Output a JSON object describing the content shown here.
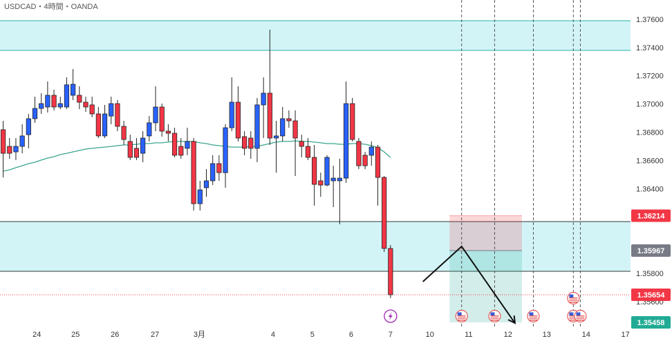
{
  "chart_data": {
    "type": "candlestick",
    "title": "USDCAD・4時間・OANDA",
    "candles": {
      "up_color": "#2962ff",
      "down_color": "#f23645",
      "open": [
        1.36823,
        1.36705,
        1.36666,
        1.36705,
        1.36788,
        1.36901,
        1.36974,
        1.36984,
        1.37067,
        1.36984,
        1.36984,
        1.37067,
        1.37067,
        1.37018,
        1.36999,
        1.36935,
        1.36779,
        1.3692,
        1.37008,
        1.36847,
        1.3674,
        1.36691,
        1.36656,
        1.36779,
        1.36872,
        1.36984,
        1.36813,
        1.36798,
        1.36705,
        1.36691,
        1.3674,
        1.36299,
        1.36412,
        1.36461,
        1.36583,
        1.36519,
        1.36837,
        1.37018,
        1.36774,
        1.36764,
        1.36691,
        1.36999,
        1.37082,
        1.36764,
        1.36779,
        1.36901,
        1.36886,
        1.3674,
        1.36705,
        1.36627,
        1.36461,
        1.36431,
        1.36461,
        1.36461,
        1.3648,
        1.37008,
        1.3674,
        1.36642,
        1.36642,
        1.367,
        1.36485,
        1.35982
      ],
      "high": [
        1.36886,
        1.36764,
        1.36764,
        1.36862,
        1.36935,
        1.37057,
        1.37082,
        1.37165,
        1.37106,
        1.37057,
        1.37194,
        1.37253,
        1.37131,
        1.37057,
        1.37057,
        1.36984,
        1.36999,
        1.37057,
        1.37033,
        1.36886,
        1.36788,
        1.36764,
        1.36813,
        1.3692,
        1.37131,
        1.37008,
        1.36862,
        1.36837,
        1.36764,
        1.36837,
        1.36764,
        1.36461,
        1.36544,
        1.36642,
        1.36642,
        1.36862,
        1.37194,
        1.37131,
        1.36813,
        1.36813,
        1.37048,
        1.37194,
        1.37532,
        1.36886,
        1.36984,
        1.3696,
        1.3696,
        1.36788,
        1.36764,
        1.36715,
        1.36519,
        1.36642,
        1.36568,
        1.36617,
        1.37165,
        1.37048,
        1.36764,
        1.36666,
        1.3674,
        1.36715,
        1.36495,
        1.36006
      ],
      "low": [
        1.36485,
        1.36617,
        1.36608,
        1.36656,
        1.36691,
        1.36872,
        1.36935,
        1.36945,
        1.3696,
        1.36969,
        1.36969,
        1.37033,
        1.36969,
        1.3695,
        1.36911,
        1.36764,
        1.36764,
        1.36862,
        1.36813,
        1.36715,
        1.36608,
        1.36608,
        1.36593,
        1.3674,
        1.36813,
        1.36774,
        1.3674,
        1.36627,
        1.36617,
        1.36642,
        1.36251,
        1.36251,
        1.36348,
        1.36431,
        1.36461,
        1.36412,
        1.36813,
        1.3674,
        1.36642,
        1.36617,
        1.36593,
        1.36764,
        1.36715,
        1.36519,
        1.3674,
        1.36837,
        1.36495,
        1.36627,
        1.36608,
        1.36285,
        1.36348,
        1.36422,
        1.36275,
        1.36153,
        1.36446,
        1.3674,
        1.36544,
        1.36544,
        1.36568,
        1.36285,
        1.35957,
        1.3563
      ],
      "close": [
        1.36656,
        1.36656,
        1.36705,
        1.36779,
        1.36901,
        1.36974,
        1.37008,
        1.37067,
        1.36984,
        1.37008,
        1.37141,
        1.37145,
        1.37018,
        1.36984,
        1.36935,
        1.36779,
        1.36935,
        1.37008,
        1.36847,
        1.36754,
        1.36627,
        1.36627,
        1.36764,
        1.36872,
        1.36984,
        1.36813,
        1.36798,
        1.36642,
        1.36642,
        1.3674,
        1.36299,
        1.36397,
        1.36461,
        1.36583,
        1.36519,
        1.36837,
        1.37018,
        1.36764,
        1.36691,
        1.36691,
        1.36999,
        1.37082,
        1.36764,
        1.36779,
        1.36901,
        1.36886,
        1.36764,
        1.36705,
        1.36627,
        1.36436,
        1.36431,
        1.36627,
        1.3648,
        1.3648,
        1.37008,
        1.36754,
        1.36568,
        1.36568,
        1.367,
        1.36485,
        1.35982,
        1.35654
      ]
    },
    "ma": {
      "color": "#3aa68e",
      "values": [
        1.36529,
        1.36539,
        1.36554,
        1.36568,
        1.36583,
        1.36593,
        1.36608,
        1.36622,
        1.36632,
        1.36647,
        1.36656,
        1.36666,
        1.36676,
        1.36686,
        1.36691,
        1.36696,
        1.367,
        1.36705,
        1.3671,
        1.36715,
        1.36715,
        1.3672,
        1.36725,
        1.36725,
        1.3673,
        1.3673,
        1.36735,
        1.3674,
        1.3674,
        1.3674,
        1.3674,
        1.3673,
        1.36725,
        1.36715,
        1.3671,
        1.36705,
        1.367,
        1.367,
        1.367,
        1.36705,
        1.36705,
        1.36715,
        1.36725,
        1.36735,
        1.3674,
        1.3674,
        1.36744,
        1.3674,
        1.3674,
        1.36735,
        1.3673,
        1.36725,
        1.36725,
        1.3672,
        1.3672,
        1.36725,
        1.36725,
        1.3672,
        1.3671,
        1.36696,
        1.36666,
        1.36627
      ]
    },
    "zones": [
      {
        "top": 1.37595,
        "bottom": 1.37385,
        "fill": "#d2f4f7",
        "border": "#2bb5a9"
      },
      {
        "top": 1.36172,
        "bottom": 1.3582,
        "fill": "#d2f4f7",
        "border": "#333333"
      }
    ],
    "position": {
      "x": [
        70.3,
        81.7
      ],
      "stop": 1.36214,
      "entry": 1.35967,
      "target": 1.35458,
      "stop_color": "#f23645",
      "target_color": "#22ab94"
    },
    "projection": {
      "x": [
        66.1,
        72.2,
        80.6
      ],
      "y": [
        1.35747,
        1.35996,
        1.35453
      ],
      "color": "#111111"
    },
    "events_x": [
      72.2,
      77.4,
      83.5,
      89.8,
      90.9
    ],
    "current_price": 1.35654,
    "price_labels": [
      {
        "value": 1.36214,
        "color": "#f23645"
      },
      {
        "value": 1.35967,
        "color": "#787b86"
      },
      {
        "value": 1.35654,
        "color": "#f23645"
      },
      {
        "value": 1.35458,
        "color": "#22ab94"
      }
    ],
    "xlim": [
      -0.5,
      98.8
    ],
    "xticks": [
      {
        "value": 5.3,
        "label": "24"
      },
      {
        "value": 11.4,
        "label": "25"
      },
      {
        "value": 17.6,
        "label": "26"
      },
      {
        "value": 23.9,
        "label": "27"
      },
      {
        "value": 30.9,
        "label": "3月"
      },
      {
        "value": 42.5,
        "label": "4"
      },
      {
        "value": 48.7,
        "label": "5"
      },
      {
        "value": 54.8,
        "label": "6"
      },
      {
        "value": 61,
        "label": "7"
      },
      {
        "value": 67.2,
        "label": "10"
      },
      {
        "value": 73.3,
        "label": "11"
      },
      {
        "value": 79.5,
        "label": "12"
      },
      {
        "value": 85.6,
        "label": "13"
      },
      {
        "value": 91.8,
        "label": "14"
      },
      {
        "value": 98,
        "label": "17"
      }
    ],
    "ylim": [
      1.35424,
      1.37742
    ],
    "yticks": [
      {
        "value": 1.376,
        "label": "1.37600"
      },
      {
        "value": 1.374,
        "label": "1.37400"
      },
      {
        "value": 1.372,
        "label": "1.37200"
      },
      {
        "value": 1.37,
        "label": "1.37000"
      },
      {
        "value": 1.368,
        "label": "1.36800"
      },
      {
        "value": 1.366,
        "label": "1.36600"
      },
      {
        "value": 1.364,
        "label": "1.36400"
      },
      {
        "value": 1.358,
        "label": "1.35800"
      },
      {
        "value": 1.356,
        "label": "1.35600"
      }
    ]
  }
}
